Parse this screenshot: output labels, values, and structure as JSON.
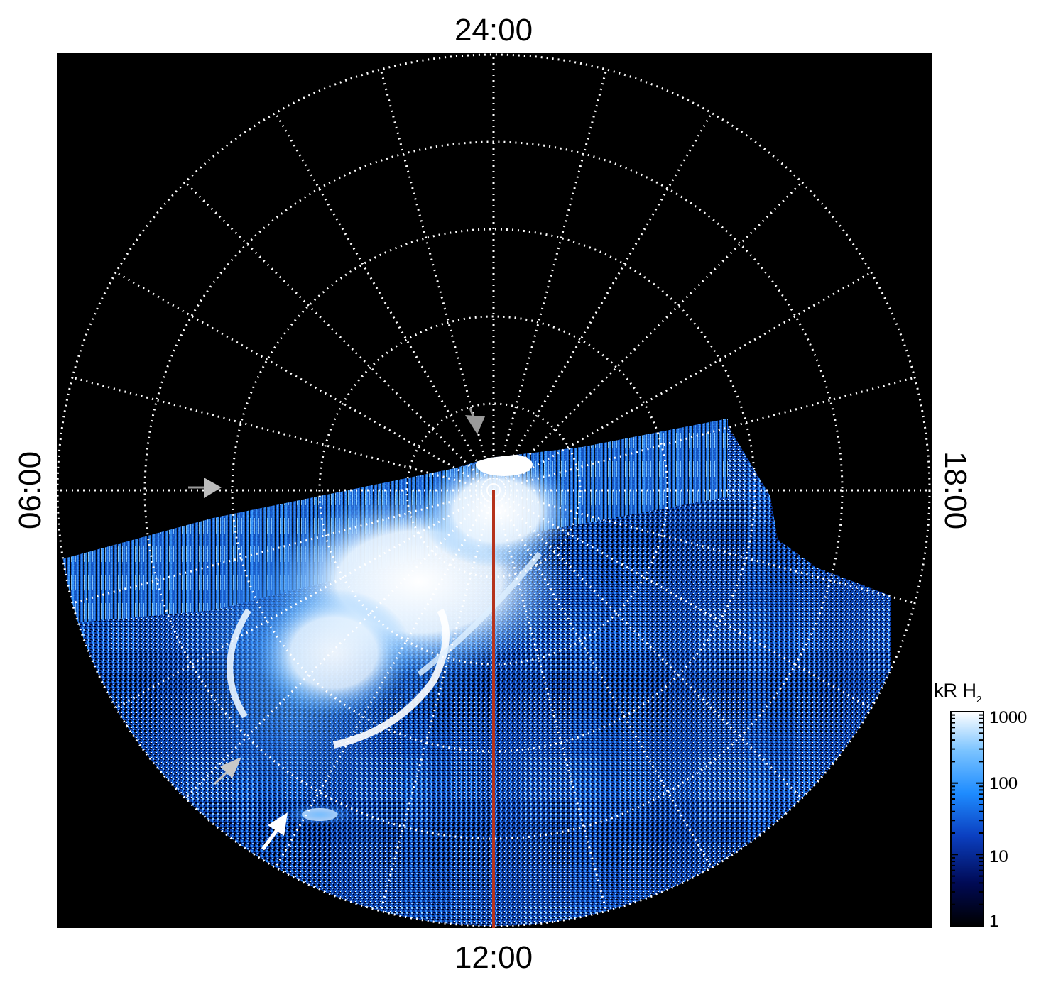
{
  "figure": {
    "plot_background": "#000000",
    "grid_color": "#ffffff",
    "meridian_line_color": "#b5331c",
    "time_labels": {
      "top": "24:00",
      "bottom": "12:00",
      "left": "06:00",
      "right": "18:00"
    },
    "arrows": [
      {
        "name": "arrow-gray-near-pole",
        "color": "#9a9a9a"
      },
      {
        "name": "arrow-gray-0600",
        "color": "#9a9a9a"
      },
      {
        "name": "arrow-gray-lower-left",
        "color": "#bfbfbf"
      },
      {
        "name": "arrow-white-bright-spot",
        "color": "#ffffff"
      }
    ],
    "colorbar": {
      "title": "kR H",
      "title_subscript": "2",
      "scale": "log",
      "ticks": [
        "1000",
        "100",
        "10",
        "1"
      ],
      "colors": [
        "#000000",
        "#000a55",
        "#0b3fc0",
        "#1e8cff",
        "#7cc4ff",
        "#ffffff"
      ]
    }
  }
}
